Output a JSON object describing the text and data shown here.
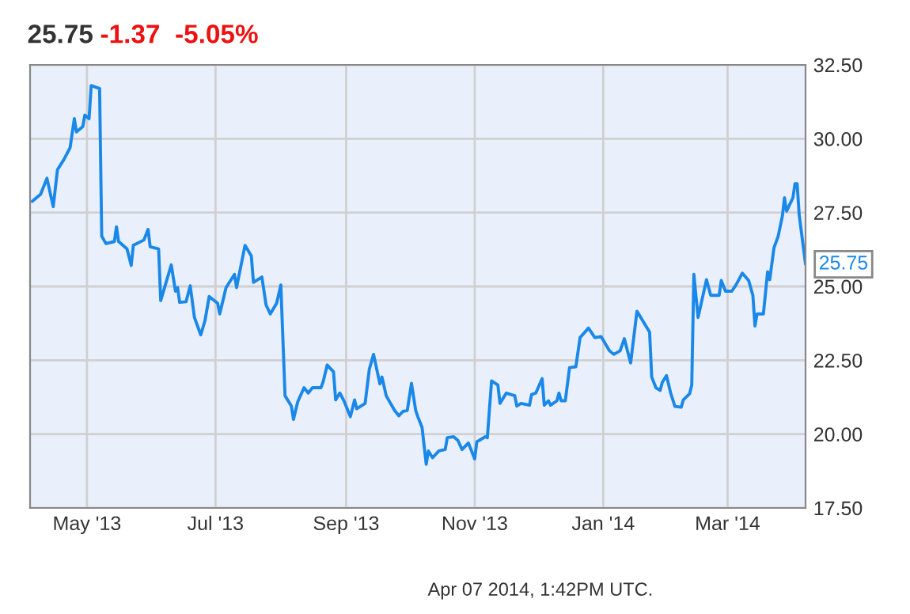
{
  "chart_data": {
    "type": "line",
    "title": "25.75",
    "subtitle": "-1.37  -5.05%",
    "x": [
      "2013-04-05",
      "2013-04-09",
      "2013-04-12",
      "2013-04-15",
      "2013-04-17",
      "2013-04-20",
      "2013-04-23",
      "2013-04-25",
      "2013-04-26",
      "2013-04-29",
      "2013-04-30",
      "2013-05-02",
      "2013-05-03",
      "2013-05-07",
      "2013-05-08",
      "2013-05-10",
      "2013-05-14",
      "2013-05-15",
      "2013-05-16",
      "2013-05-20",
      "2013-05-22",
      "2013-05-23",
      "2013-05-28",
      "2013-05-30",
      "2013-05-31",
      "2013-06-04",
      "2013-06-05",
      "2013-06-10",
      "2013-06-12",
      "2013-06-13",
      "2013-06-14",
      "2013-06-17",
      "2013-06-19",
      "2013-06-21",
      "2013-06-24",
      "2013-06-26",
      "2013-06-28",
      "2013-07-02",
      "2013-07-03",
      "2013-07-06",
      "2013-07-10",
      "2013-07-11",
      "2013-07-15",
      "2013-07-18",
      "2013-07-19",
      "2013-07-23",
      "2013-07-25",
      "2013-07-27",
      "2013-07-30",
      "2013-08-01",
      "2013-08-03",
      "2013-08-06",
      "2013-08-07",
      "2013-08-09",
      "2013-08-12",
      "2013-08-14",
      "2013-08-16",
      "2013-08-20",
      "2013-08-21",
      "2013-08-23",
      "2013-08-26",
      "2013-08-27",
      "2013-08-29",
      "2013-08-31",
      "2013-09-03",
      "2013-09-05",
      "2013-09-06",
      "2013-09-10",
      "2013-09-12",
      "2013-09-14",
      "2013-09-17",
      "2013-09-18",
      "2013-09-20",
      "2013-09-24",
      "2013-09-26",
      "2013-09-28",
      "2013-09-30",
      "2013-10-02",
      "2013-10-04",
      "2013-10-05",
      "2013-10-07",
      "2013-10-09",
      "2013-10-10",
      "2013-10-12",
      "2013-10-15",
      "2013-10-18",
      "2013-10-19",
      "2013-10-22",
      "2013-10-24",
      "2013-10-26",
      "2013-10-29",
      "2013-11-01",
      "2013-11-02",
      "2013-11-06",
      "2013-11-07",
      "2013-11-09",
      "2013-11-12",
      "2013-11-13",
      "2013-11-16",
      "2013-11-20",
      "2013-11-21",
      "2013-11-23",
      "2013-11-27",
      "2013-11-28",
      "2013-11-30",
      "2013-12-03",
      "2013-12-04",
      "2013-12-06",
      "2013-12-07",
      "2013-12-10",
      "2013-12-11",
      "2013-12-12",
      "2013-12-14",
      "2013-12-16",
      "2013-12-19",
      "2013-12-21",
      "2013-12-25",
      "2013-12-28",
      "2013-12-31",
      "2014-01-04",
      "2014-01-06",
      "2014-01-09",
      "2014-01-11",
      "2014-01-14",
      "2014-01-17",
      "2014-01-23",
      "2014-01-24",
      "2014-01-26",
      "2014-01-28",
      "2014-01-29",
      "2014-01-31",
      "2014-02-02",
      "2014-02-04",
      "2014-02-07",
      "2014-02-08",
      "2014-02-11",
      "2014-02-12",
      "2014-02-13",
      "2014-02-15",
      "2014-02-19",
      "2014-02-21",
      "2014-02-25",
      "2014-02-26",
      "2014-02-28",
      "2014-03-03",
      "2014-03-05",
      "2014-03-08",
      "2014-03-11",
      "2014-03-13",
      "2014-03-14",
      "2014-03-15",
      "2014-03-18",
      "2014-03-20",
      "2014-03-21",
      "2014-03-23",
      "2014-03-25",
      "2014-03-27",
      "2014-03-28",
      "2014-03-29",
      "2014-04-01",
      "2014-04-02",
      "2014-04-03",
      "2014-04-04",
      "2014-04-07"
    ],
    "series": [
      {
        "color": "#1a88e8",
        "values": [
          27.88,
          28.12,
          28.66,
          27.7,
          28.95,
          29.29,
          29.7,
          30.68,
          30.23,
          30.41,
          30.8,
          30.68,
          31.8,
          31.7,
          26.7,
          26.45,
          26.52,
          27.02,
          26.52,
          26.27,
          25.71,
          26.39,
          26.57,
          26.93,
          26.34,
          26.27,
          24.52,
          25.73,
          24.84,
          24.96,
          24.46,
          24.48,
          25.02,
          23.95,
          23.36,
          23.84,
          24.66,
          24.43,
          24.07,
          24.96,
          25.41,
          24.96,
          26.39,
          26.03,
          25.14,
          25.32,
          24.37,
          24.07,
          24.43,
          25.05,
          21.3,
          20.95,
          20.5,
          21.09,
          21.57,
          21.39,
          21.57,
          21.57,
          21.75,
          22.34,
          22.11,
          21.16,
          21.39,
          21.12,
          20.59,
          21.16,
          20.86,
          21.04,
          22.2,
          22.7,
          21.7,
          21.93,
          21.3,
          20.8,
          20.62,
          20.77,
          20.8,
          21.72,
          20.8,
          20.59,
          20.23,
          18.98,
          19.43,
          19.2,
          19.43,
          19.48,
          19.88,
          19.91,
          19.79,
          19.48,
          19.7,
          19.16,
          19.74,
          19.91,
          19.88,
          21.8,
          21.66,
          21.04,
          21.39,
          21.3,
          20.95,
          21.04,
          20.98,
          21.34,
          21.39,
          21.88,
          20.98,
          21.13,
          20.98,
          21.13,
          21.39,
          21.13,
          21.13,
          22.25,
          22.28,
          23.27,
          23.59,
          23.27,
          23.3,
          22.82,
          22.7,
          22.82,
          23.23,
          22.41,
          24.16,
          23.45,
          21.93,
          21.57,
          21.48,
          21.75,
          21.98,
          21.39,
          20.94,
          20.91,
          21.16,
          21.37,
          21.66,
          25.41,
          23.95,
          25.23,
          24.7,
          24.7,
          25.2,
          24.84,
          24.84,
          25.05,
          25.45,
          25.2,
          24.7,
          23.66,
          24.07,
          24.07,
          25.5,
          25.23,
          26.3,
          26.7,
          27.38,
          28.0,
          27.55,
          28.0,
          28.48,
          28.48,
          27.41,
          25.75
        ]
      }
    ],
    "xlim": [
      "2013-04-04",
      "2014-04-07"
    ],
    "xticks": [
      {
        "value": "2013-05-01",
        "label": "May '13"
      },
      {
        "value": "2013-07-01",
        "label": "Jul '13"
      },
      {
        "value": "2013-09-01",
        "label": "Sep '13"
      },
      {
        "value": "2013-11-01",
        "label": "Nov '13"
      },
      {
        "value": "2014-01-01",
        "label": "Jan '14"
      },
      {
        "value": "2014-03-01",
        "label": "Mar '14"
      }
    ],
    "ylim": [
      17.5,
      32.5
    ],
    "yticks": [
      {
        "value": 17.5,
        "label": "17.50"
      },
      {
        "value": 20,
        "label": "20.00"
      },
      {
        "value": 22.5,
        "label": "22.50"
      },
      {
        "value": 25,
        "label": "25.00"
      },
      {
        "value": 27.5,
        "label": "27.50"
      },
      {
        "value": 30,
        "label": "30.00"
      },
      {
        "value": 32.5,
        "label": "32.50"
      }
    ],
    "grid": true,
    "legend": false,
    "marker": "none",
    "line_style": "solid",
    "annotations": [
      {
        "text": "25.75",
        "x": "2014-04-07",
        "y": 25.75
      },
      "Apr 07 2014, 1:42PM UTC."
    ]
  }
}
